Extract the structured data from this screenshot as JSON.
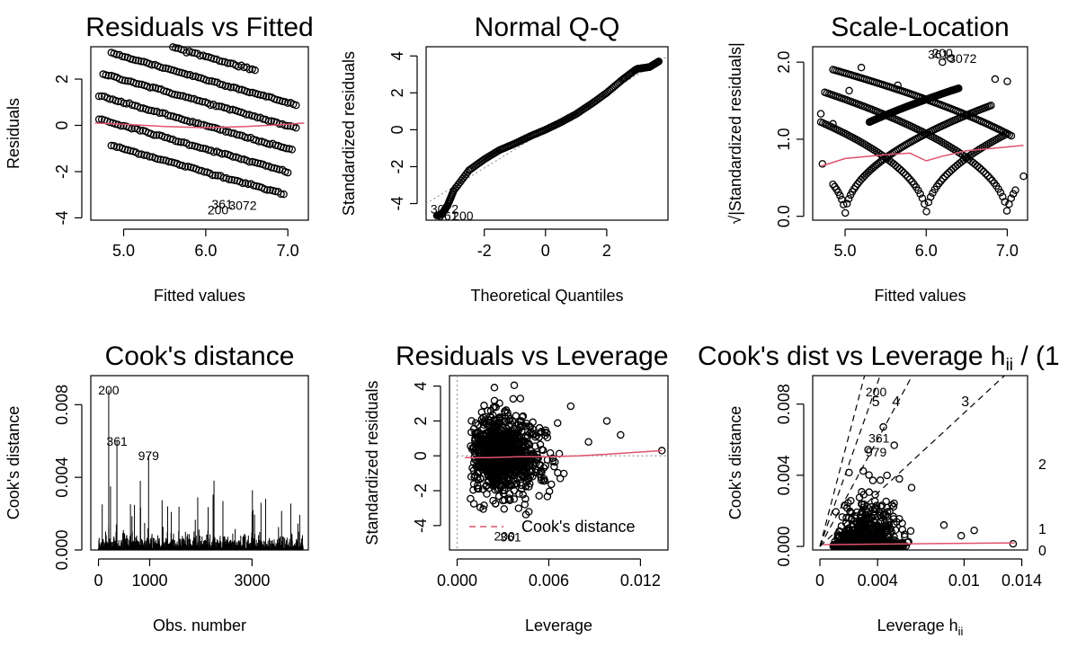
{
  "chart_data": [
    {
      "type": "scatter",
      "title": "Residuals vs Fitted",
      "xlabel": "Fitted values",
      "ylabel": "Residuals",
      "xlim": [
        4.6,
        7.25
      ],
      "ylim": [
        -4.1,
        3.4
      ],
      "xticks": [
        "5.0",
        "6.0",
        "7.0"
      ],
      "xtick_values": [
        5,
        6,
        7
      ],
      "yticks": [
        "-4",
        "-2",
        "0",
        "2"
      ],
      "ytick_values": [
        -4,
        -2,
        0,
        2
      ],
      "structure": "diagonal bands of residuals for integer responses 4-10, each with slope -1",
      "bands": [
        {
          "response": 4,
          "x_range": [
            4.85,
            6.95
          ]
        },
        {
          "response": 5,
          "x_range": [
            4.7,
            7.0
          ]
        },
        {
          "response": 6,
          "x_range": [
            4.7,
            7.05
          ]
        },
        {
          "response": 7,
          "x_range": [
            4.75,
            7.1
          ]
        },
        {
          "response": 8,
          "x_range": [
            4.85,
            7.1
          ]
        },
        {
          "response": 9,
          "x_range": [
            5.6,
            6.6
          ]
        },
        {
          "response": 10,
          "x_range": [
            5.3,
            6.3
          ]
        }
      ],
      "smooth": {
        "x": [
          4.65,
          5.0,
          5.5,
          6.0,
          6.5,
          7.0,
          7.2
        ],
        "y": [
          0.1,
          0.05,
          -0.05,
          -0.1,
          -0.05,
          0.05,
          0.1
        ]
      },
      "labels": [
        {
          "text": "200",
          "x": 6.15,
          "y": -3.65
        },
        {
          "text": "361",
          "x": 6.2,
          "y": -3.4
        },
        {
          "text": "3072",
          "x": 6.45,
          "y": -3.45
        }
      ]
    },
    {
      "type": "scatter",
      "title": "Normal Q-Q",
      "xlabel": "Theoretical Quantiles",
      "ylabel": "Standardized residuals",
      "xlim": [
        -3.9,
        4.0
      ],
      "ylim": [
        -4.9,
        4.5
      ],
      "xticks": [
        "-2",
        "0",
        "2"
      ],
      "xtick_values": [
        -2,
        0,
        2
      ],
      "yticks": [
        "-4",
        "-2",
        "0",
        "2",
        "4"
      ],
      "ytick_values": [
        -4,
        -2,
        0,
        2,
        4
      ],
      "qq_points": {
        "x": [
          -3.55,
          -3.4,
          -3.2,
          -3.0,
          -2.5,
          -2.0,
          -1.5,
          -1.0,
          -0.5,
          0,
          0.5,
          1.0,
          1.5,
          2.0,
          2.5,
          2.9,
          3.0,
          3.2,
          3.4,
          3.7
        ],
        "y": [
          -4.65,
          -4.6,
          -4.1,
          -3.3,
          -2.2,
          -1.6,
          -1.1,
          -0.75,
          -0.35,
          0.0,
          0.4,
          0.85,
          1.4,
          2.0,
          2.7,
          3.2,
          3.3,
          3.35,
          3.4,
          3.7
        ]
      },
      "reference_line": {
        "x": [
          -3.9,
          4.0
        ],
        "y": [
          -4.0,
          4.0
        ]
      },
      "labels": [
        {
          "text": "3072",
          "x": -3.3,
          "y": -4.3
        },
        {
          "text": "361",
          "x": -3.2,
          "y": -4.65
        },
        {
          "text": "200",
          "x": -2.7,
          "y": -4.65
        }
      ]
    },
    {
      "type": "scatter",
      "title": "Scale-Location",
      "xlabel": "Fitted values",
      "ylabel": "√|Standardized residuals|",
      "xlim": [
        4.6,
        7.25
      ],
      "ylim": [
        -0.05,
        2.2
      ],
      "xticks": [
        "5.0",
        "6.0",
        "7.0"
      ],
      "xtick_values": [
        5,
        6,
        7
      ],
      "yticks": [
        "0.0",
        "1.0",
        "2.0"
      ],
      "ytick_values": [
        0,
        1,
        2
      ],
      "structure": "square-root curves of absolute residual bands forming V shapes at x=5, 6 and 7",
      "smooth": {
        "x": [
          4.7,
          5.0,
          5.5,
          5.8,
          6.0,
          6.2,
          6.5,
          7.0,
          7.2
        ],
        "y": [
          0.65,
          0.75,
          0.8,
          0.82,
          0.72,
          0.78,
          0.85,
          0.9,
          0.92
        ]
      },
      "labels": [
        {
          "text": "200",
          "x": 6.2,
          "y": 2.12
        },
        {
          "text": "361",
          "x": 6.15,
          "y": 2.1
        },
        {
          "text": "3072",
          "x": 6.45,
          "y": 2.05
        }
      ]
    },
    {
      "type": "bar",
      "title": "Cook's distance",
      "xlabel": "Obs. number",
      "ylabel": "Cook's distance",
      "xlim": [
        -150,
        4100
      ],
      "ylim": [
        0,
        0.0096
      ],
      "xticks": [
        "0",
        "1000",
        "3000"
      ],
      "xtick_values": [
        0,
        1000,
        3000
      ],
      "yticks": [
        "0.000",
        "0.004",
        "0.008"
      ],
      "ytick_values": [
        0,
        0.004,
        0.008
      ],
      "top_values": [
        {
          "obs": 200,
          "value": 0.0088
        },
        {
          "obs": 361,
          "value": 0.006
        },
        {
          "obs": 979,
          "value": 0.0052
        }
      ],
      "labels": [
        {
          "text": "200",
          "x": 200,
          "y": 0.0088
        },
        {
          "text": "361",
          "x": 361,
          "y": 0.006
        },
        {
          "text": "979",
          "x": 979,
          "y": 0.0052
        }
      ]
    },
    {
      "type": "scatter",
      "title": "Residuals vs Leverage",
      "xlabel": "Leverage",
      "ylabel": "Standardized residuals",
      "xlim": [
        -0.0005,
        0.0138
      ],
      "ylim": [
        -5.4,
        4.6
      ],
      "xticks": [
        "0.000",
        "0.006",
        "0.012"
      ],
      "xtick_values": [
        0,
        0.006,
        0.012
      ],
      "yticks": [
        "-4",
        "-2",
        "0",
        "2",
        "4"
      ],
      "ytick_values": [
        -4,
        -2,
        0,
        2,
        4
      ],
      "smooth": {
        "x": [
          0.0005,
          0.002,
          0.004,
          0.006,
          0.008,
          0.01,
          0.0134
        ],
        "y": [
          -0.1,
          -0.1,
          -0.05,
          -0.05,
          0.0,
          0.1,
          0.3
        ]
      },
      "outlying_points": [
        {
          "x": 0.0134,
          "y": 0.3
        },
        {
          "x": 0.0107,
          "y": 1.2
        },
        {
          "x": 0.0098,
          "y": 2.0
        },
        {
          "x": 0.0086,
          "y": 0.8
        }
      ],
      "legend": {
        "label": "Cook's distance",
        "placement": "bottom"
      },
      "labels": [
        {
          "text": "200",
          "x": 0.0031,
          "y": -4.6
        },
        {
          "text": "361",
          "x": 0.0035,
          "y": -4.65
        }
      ]
    },
    {
      "type": "scatter",
      "title": "Cook's dist vs Leverage  h",
      "title_subscript": "ii",
      "title_suffix": " / (1",
      "xlabel": "Leverage  h",
      "xlabel_subscript": "ii",
      "ylabel": "Cook's distance",
      "xlim": [
        -0.0005,
        0.0144
      ],
      "ylim": [
        -0.0002,
        0.0096
      ],
      "xticks": [
        "0",
        "0.004",
        "0.01",
        "0.014"
      ],
      "xtick_values": [
        0,
        0.004,
        0.01,
        0.014
      ],
      "yticks": [
        "0.000",
        "0.004",
        "0.008"
      ],
      "ytick_values": [
        0,
        0.004,
        0.008
      ],
      "contour_labels": [
        "0",
        "1",
        "2",
        "3",
        "4",
        "5"
      ],
      "contour_slopes": [
        0.75,
        1.5,
        2.3,
        3.1
      ],
      "smooth": {
        "x": [
          0.0002,
          0.004,
          0.008,
          0.0135
        ],
        "y": [
          0.0001,
          0.00013,
          0.00016,
          0.0002
        ]
      },
      "labels": [
        {
          "text": "200",
          "x": 0.0039,
          "y": 0.0087
        },
        {
          "text": "361",
          "x": 0.0041,
          "y": 0.0061
        },
        {
          "text": "979",
          "x": 0.0039,
          "y": 0.0053
        }
      ]
    }
  ]
}
